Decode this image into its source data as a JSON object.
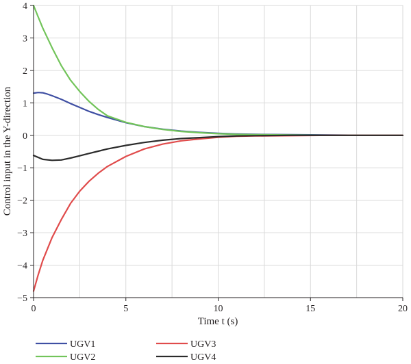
{
  "chart_data": {
    "type": "line",
    "title": "",
    "xlabel": "Time t (s)",
    "ylabel": "Control input in the Y-direction",
    "xlim": [
      0,
      20
    ],
    "ylim": [
      -5,
      4
    ],
    "x_ticks": [
      0,
      5,
      10,
      15,
      20
    ],
    "y_ticks": [
      4,
      3,
      2,
      1,
      0,
      -1,
      -2,
      -3,
      -4,
      -5
    ],
    "x_grid": [
      2.5,
      5,
      7.5,
      10,
      12.5,
      15,
      17.5
    ],
    "grid": true,
    "legend_position": "bottom",
    "series": [
      {
        "name": "UGV1",
        "color": "#3f4fa3",
        "x": [
          0,
          0.25,
          0.5,
          0.75,
          1,
          1.5,
          2,
          2.5,
          3,
          3.5,
          4,
          5,
          6,
          7,
          8,
          9,
          10,
          11,
          12,
          14,
          16,
          18,
          20
        ],
        "y": [
          1.3,
          1.32,
          1.31,
          1.27,
          1.22,
          1.11,
          0.98,
          0.86,
          0.74,
          0.64,
          0.55,
          0.39,
          0.27,
          0.19,
          0.13,
          0.09,
          0.06,
          0.04,
          0.03,
          0.02,
          0.01,
          0.0,
          0.0
        ]
      },
      {
        "name": "UGV2",
        "color": "#72c45a",
        "x": [
          0,
          0.25,
          0.5,
          1,
          1.5,
          2,
          2.5,
          3,
          3.5,
          4,
          5,
          6,
          7,
          8,
          9,
          10,
          11,
          12,
          14,
          16,
          18,
          20
        ],
        "y": [
          4.0,
          3.65,
          3.3,
          2.7,
          2.15,
          1.7,
          1.35,
          1.05,
          0.8,
          0.6,
          0.4,
          0.27,
          0.18,
          0.12,
          0.08,
          0.05,
          0.03,
          0.02,
          0.01,
          0.0,
          0.0,
          0.0
        ]
      },
      {
        "name": "UGV3",
        "color": "#e04b4b",
        "x": [
          0,
          0.25,
          0.5,
          1,
          1.5,
          2,
          2.5,
          3,
          3.5,
          4,
          5,
          6,
          7,
          8,
          9,
          10,
          11,
          12,
          14,
          16,
          18,
          20
        ],
        "y": [
          -4.8,
          -4.3,
          -3.85,
          -3.15,
          -2.6,
          -2.1,
          -1.72,
          -1.42,
          -1.17,
          -0.96,
          -0.65,
          -0.42,
          -0.27,
          -0.17,
          -0.11,
          -0.06,
          -0.03,
          -0.02,
          -0.01,
          0.0,
          0.0,
          0.0
        ]
      },
      {
        "name": "UGV4",
        "color": "#2b2b2b",
        "x": [
          0,
          0.5,
          1,
          1.5,
          2,
          2.5,
          3,
          3.5,
          4,
          5,
          6,
          7,
          8,
          9,
          10,
          11,
          12,
          14,
          16,
          18,
          20
        ],
        "y": [
          -0.62,
          -0.74,
          -0.77,
          -0.76,
          -0.7,
          -0.63,
          -0.56,
          -0.49,
          -0.42,
          -0.31,
          -0.22,
          -0.15,
          -0.1,
          -0.07,
          -0.04,
          -0.02,
          -0.01,
          0.0,
          0.0,
          0.0,
          0.0
        ]
      }
    ]
  }
}
